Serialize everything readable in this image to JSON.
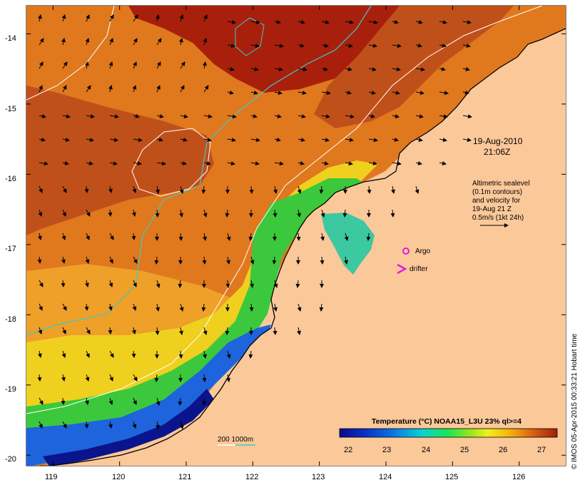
{
  "map": {
    "date_label": "19-Aug-2010",
    "time_label": "21:06Z",
    "altimetry_note": [
      "Altimetric sealevel",
      "(0.1m contours)",
      "and velocity for",
      "19-Aug 21 Z",
      "0.5m/s (1kt 24h)"
    ],
    "argo_label": "Argo",
    "drifter_label": "drifter",
    "isobath_label": "200  1000m",
    "credit": "© IMOS 05-Apr-2015 00:33:21 Hobart time",
    "lat_ticks": [
      "-14",
      "-15",
      "-16",
      "-17",
      "-18",
      "-19",
      "-20"
    ],
    "lon_ticks": [
      "119",
      "120",
      "121",
      "122",
      "123",
      "124",
      "125",
      "126"
    ],
    "colorbar": {
      "title": "Temperature (°C) NOAA15_L3U 23% ql>=4",
      "ticks": [
        "22",
        "23",
        "24",
        "25",
        "26",
        "27"
      ]
    },
    "colors": {
      "land": "#fbc89a",
      "argo": "#e01ee0",
      "drifter": "#e01ee0",
      "contour_cyan": "#40c8c8",
      "contour_white": "#ffffff"
    }
  },
  "chart_data": {
    "type": "heatmap",
    "xlim": [
      118.6,
      126.7
    ],
    "ylim": [
      -20.15,
      -13.6
    ],
    "lon_ticks": [
      119,
      120,
      121,
      122,
      123,
      124,
      125,
      126
    ],
    "lat_ticks": [
      -14,
      -15,
      -16,
      -17,
      -18,
      -19,
      -20
    ],
    "colorbar": {
      "range": [
        21.7,
        27.5
      ],
      "ticks": [
        22,
        23,
        24,
        25,
        26,
        27
      ],
      "unit": "°C"
    },
    "argo": {
      "lon": 124.3,
      "lat": -17.03
    },
    "drifter": {
      "lon": 124.25,
      "lat": -17.28
    }
  }
}
